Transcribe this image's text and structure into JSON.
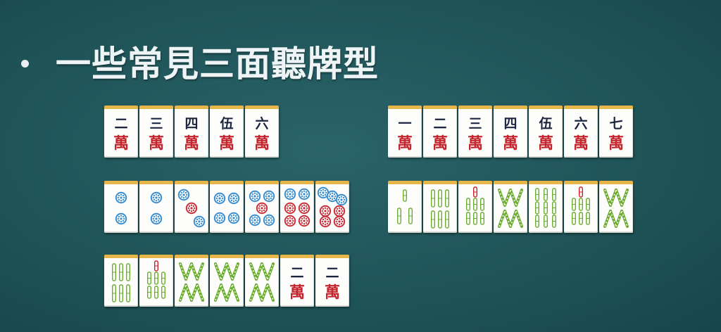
{
  "slide": {
    "title": "一些常見三面聽牌型",
    "colors": {
      "background": "#1f5559",
      "title": "#eef3f5",
      "tile_face": "#fdfdfb",
      "tile_top": "#e7b64a",
      "wan": "#c4242c",
      "numeral": "#1c2540",
      "circle_blue": "#3b8fd0",
      "circle_red": "#c9303a",
      "bamboo": "#6aac2e"
    }
  },
  "hands": [
    {
      "tiles": [
        {
          "suit": "wan",
          "num": "二"
        },
        {
          "suit": "wan",
          "num": "三"
        },
        {
          "suit": "wan",
          "num": "四"
        },
        {
          "suit": "wan",
          "num": "伍"
        },
        {
          "suit": "wan",
          "num": "六"
        }
      ]
    },
    {
      "tiles": [
        {
          "suit": "wan",
          "num": "一"
        },
        {
          "suit": "wan",
          "num": "二"
        },
        {
          "suit": "wan",
          "num": "三"
        },
        {
          "suit": "wan",
          "num": "四"
        },
        {
          "suit": "wan",
          "num": "伍"
        },
        {
          "suit": "wan",
          "num": "六"
        },
        {
          "suit": "wan",
          "num": "七"
        }
      ]
    },
    {
      "tiles": [
        {
          "suit": "pin",
          "rank": 2
        },
        {
          "suit": "pin",
          "rank": 2
        },
        {
          "suit": "pin",
          "rank": 3
        },
        {
          "suit": "pin",
          "rank": 4
        },
        {
          "suit": "pin",
          "rank": 5
        },
        {
          "suit": "pin",
          "rank": 6
        },
        {
          "suit": "pin",
          "rank": 7
        }
      ]
    },
    {
      "tiles": [
        {
          "suit": "sou",
          "rank": 3
        },
        {
          "suit": "sou",
          "rank": 6
        },
        {
          "suit": "sou",
          "rank": 7
        },
        {
          "suit": "sou",
          "rank": 8
        },
        {
          "suit": "sou",
          "rank": 9
        },
        {
          "suit": "sou",
          "rank": 7
        },
        {
          "suit": "sou",
          "rank": 8
        }
      ]
    },
    {
      "tiles": [
        {
          "suit": "sou",
          "rank": 6
        },
        {
          "suit": "sou",
          "rank": 7
        },
        {
          "suit": "sou",
          "rank": 8
        },
        {
          "suit": "sou",
          "rank": 8
        },
        {
          "suit": "sou",
          "rank": 8
        },
        {
          "suit": "wan",
          "num": "二"
        },
        {
          "suit": "wan",
          "num": "二"
        }
      ]
    }
  ],
  "wan_char": "萬"
}
